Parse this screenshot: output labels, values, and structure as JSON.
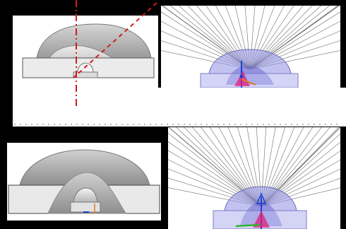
{
  "figure": {
    "panels": [
      {
        "name": "top-left",
        "content": "lens-cross-section-grey"
      },
      {
        "name": "top-right",
        "content": "ray-trace-fan-blue"
      },
      {
        "name": "bottom-left",
        "content": "lens-cross-section-grey"
      },
      {
        "name": "bottom-right",
        "content": "ray-trace-fan-blue"
      }
    ],
    "colors": {
      "background": "#000000",
      "panel": "#ffffff",
      "lens_fill": "#bdbdbd",
      "lens_dark": "#8c8c8c",
      "base_fill": "#e9e9e9",
      "ray_lines": "#6b6b6b",
      "lens_blue": "#8c8ce0",
      "dashed_axis": "#cc1f1f",
      "vector_red": "#e0207a",
      "vector_blue": "#1c3fd6",
      "vector_green": "#2fb52f"
    },
    "ray_counts": {
      "top_fan": 44,
      "bottom_fan": 46
    }
  }
}
